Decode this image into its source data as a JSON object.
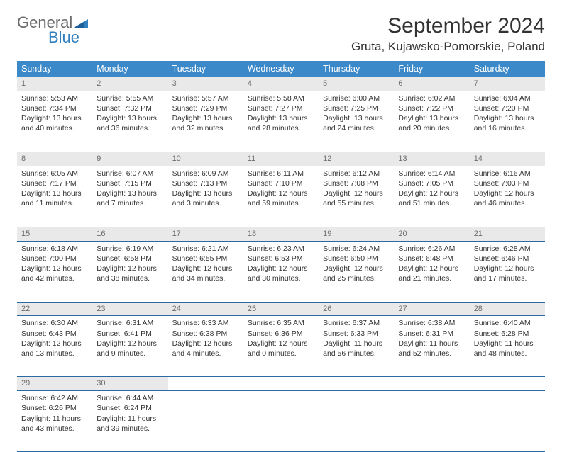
{
  "logo": {
    "line1": "General",
    "line2": "Blue"
  },
  "title": "September 2024",
  "location": "Gruta, Kujawsko-Pomorskie, Poland",
  "dayNames": [
    "Sunday",
    "Monday",
    "Tuesday",
    "Wednesday",
    "Thursday",
    "Friday",
    "Saturday"
  ],
  "colors": {
    "header_bg": "#3b89c9",
    "divider": "#2a6aa4",
    "daynum_bg": "#e9e9e9",
    "text": "#333333",
    "muted": "#6d6d6d",
    "logo_gray": "#6a6a6a",
    "logo_blue": "#2f7fc1",
    "background": "#ffffff"
  },
  "font": {
    "family": "Arial",
    "title_size": 30,
    "location_size": 17,
    "header_size": 12.5,
    "cell_size": 10.5,
    "daynum_size": 11
  },
  "weeks": [
    [
      {
        "n": "1",
        "sr": "5:53 AM",
        "ss": "7:34 PM",
        "dl": "13 hours and 40 minutes."
      },
      {
        "n": "2",
        "sr": "5:55 AM",
        "ss": "7:32 PM",
        "dl": "13 hours and 36 minutes."
      },
      {
        "n": "3",
        "sr": "5:57 AM",
        "ss": "7:29 PM",
        "dl": "13 hours and 32 minutes."
      },
      {
        "n": "4",
        "sr": "5:58 AM",
        "ss": "7:27 PM",
        "dl": "13 hours and 28 minutes."
      },
      {
        "n": "5",
        "sr": "6:00 AM",
        "ss": "7:25 PM",
        "dl": "13 hours and 24 minutes."
      },
      {
        "n": "6",
        "sr": "6:02 AM",
        "ss": "7:22 PM",
        "dl": "13 hours and 20 minutes."
      },
      {
        "n": "7",
        "sr": "6:04 AM",
        "ss": "7:20 PM",
        "dl": "13 hours and 16 minutes."
      }
    ],
    [
      {
        "n": "8",
        "sr": "6:05 AM",
        "ss": "7:17 PM",
        "dl": "13 hours and 11 minutes."
      },
      {
        "n": "9",
        "sr": "6:07 AM",
        "ss": "7:15 PM",
        "dl": "13 hours and 7 minutes."
      },
      {
        "n": "10",
        "sr": "6:09 AM",
        "ss": "7:13 PM",
        "dl": "13 hours and 3 minutes."
      },
      {
        "n": "11",
        "sr": "6:11 AM",
        "ss": "7:10 PM",
        "dl": "12 hours and 59 minutes."
      },
      {
        "n": "12",
        "sr": "6:12 AM",
        "ss": "7:08 PM",
        "dl": "12 hours and 55 minutes."
      },
      {
        "n": "13",
        "sr": "6:14 AM",
        "ss": "7:05 PM",
        "dl": "12 hours and 51 minutes."
      },
      {
        "n": "14",
        "sr": "6:16 AM",
        "ss": "7:03 PM",
        "dl": "12 hours and 46 minutes."
      }
    ],
    [
      {
        "n": "15",
        "sr": "6:18 AM",
        "ss": "7:00 PM",
        "dl": "12 hours and 42 minutes."
      },
      {
        "n": "16",
        "sr": "6:19 AM",
        "ss": "6:58 PM",
        "dl": "12 hours and 38 minutes."
      },
      {
        "n": "17",
        "sr": "6:21 AM",
        "ss": "6:55 PM",
        "dl": "12 hours and 34 minutes."
      },
      {
        "n": "18",
        "sr": "6:23 AM",
        "ss": "6:53 PM",
        "dl": "12 hours and 30 minutes."
      },
      {
        "n": "19",
        "sr": "6:24 AM",
        "ss": "6:50 PM",
        "dl": "12 hours and 25 minutes."
      },
      {
        "n": "20",
        "sr": "6:26 AM",
        "ss": "6:48 PM",
        "dl": "12 hours and 21 minutes."
      },
      {
        "n": "21",
        "sr": "6:28 AM",
        "ss": "6:46 PM",
        "dl": "12 hours and 17 minutes."
      }
    ],
    [
      {
        "n": "22",
        "sr": "6:30 AM",
        "ss": "6:43 PM",
        "dl": "12 hours and 13 minutes."
      },
      {
        "n": "23",
        "sr": "6:31 AM",
        "ss": "6:41 PM",
        "dl": "12 hours and 9 minutes."
      },
      {
        "n": "24",
        "sr": "6:33 AM",
        "ss": "6:38 PM",
        "dl": "12 hours and 4 minutes."
      },
      {
        "n": "25",
        "sr": "6:35 AM",
        "ss": "6:36 PM",
        "dl": "12 hours and 0 minutes."
      },
      {
        "n": "26",
        "sr": "6:37 AM",
        "ss": "6:33 PM",
        "dl": "11 hours and 56 minutes."
      },
      {
        "n": "27",
        "sr": "6:38 AM",
        "ss": "6:31 PM",
        "dl": "11 hours and 52 minutes."
      },
      {
        "n": "28",
        "sr": "6:40 AM",
        "ss": "6:28 PM",
        "dl": "11 hours and 48 minutes."
      }
    ],
    [
      {
        "n": "29",
        "sr": "6:42 AM",
        "ss": "6:26 PM",
        "dl": "11 hours and 43 minutes."
      },
      {
        "n": "30",
        "sr": "6:44 AM",
        "ss": "6:24 PM",
        "dl": "11 hours and 39 minutes."
      },
      null,
      null,
      null,
      null,
      null
    ]
  ],
  "labels": {
    "sunrise": "Sunrise:",
    "sunset": "Sunset:",
    "daylight": "Daylight:"
  }
}
